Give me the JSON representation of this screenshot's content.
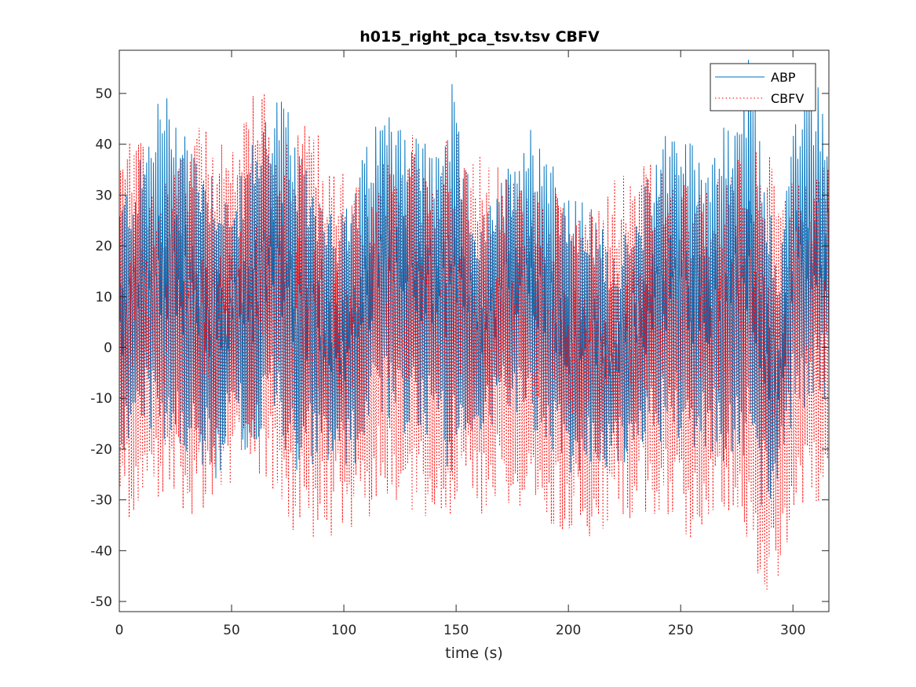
{
  "chart_data": {
    "type": "line",
    "title": "h015_right_pca_tsv.tsv CBFV",
    "xlabel": "time (s)",
    "ylabel": "",
    "xlim": [
      0,
      316
    ],
    "ylim": [
      -52,
      58.5
    ],
    "xticks": [
      "0",
      "50",
      "100",
      "150",
      "200",
      "250",
      "300"
    ],
    "xtick_values": [
      0,
      50,
      100,
      150,
      200,
      250,
      300
    ],
    "yticks": [
      "-50",
      "-40",
      "-30",
      "-20",
      "-10",
      "0",
      "10",
      "20",
      "30",
      "40",
      "50"
    ],
    "ytick_values": [
      -50,
      -40,
      -30,
      -20,
      -10,
      0,
      10,
      20,
      30,
      40,
      50
    ],
    "grid": false,
    "legend_position": "top-right",
    "series": [
      {
        "name": "ABP",
        "color": "#0072BD",
        "style": "solid",
        "beat_period_s": 1.0,
        "envelope": {
          "t": [
            0,
            10,
            17,
            25,
            35,
            45,
            50,
            58,
            67,
            72,
            80,
            90,
            100,
            110,
            115,
            124,
            130,
            140,
            148,
            152,
            160,
            170,
            180,
            190,
            200,
            210,
            220,
            230,
            240,
            248,
            256,
            265,
            272,
            280,
            288,
            293,
            300,
            310,
            316
          ],
          "max": [
            30,
            38,
            51,
            50,
            40,
            35,
            28,
            40,
            50,
            52,
            38,
            32,
            27,
            40,
            46,
            50,
            44,
            40,
            52,
            40,
            25,
            33,
            45,
            43,
            30,
            28,
            20,
            25,
            43,
            46,
            40,
            42,
            45,
            58,
            35,
            15,
            47,
            55,
            47
          ],
          "min": [
            -24,
            -15,
            -18,
            -20,
            -25,
            -28,
            -15,
            -22,
            -15,
            -20,
            -25,
            -22,
            -26,
            -23,
            -12,
            -20,
            -17,
            -19,
            -25,
            -20,
            -18,
            -14,
            -15,
            -20,
            -26,
            -25,
            -24,
            -22,
            -20,
            -18,
            -22,
            -21,
            -25,
            -25,
            -34,
            -30,
            -14,
            -12,
            -10
          ]
        }
      },
      {
        "name": "CBFV",
        "color": "#FF0000",
        "style": "dotted",
        "beat_period_s": 1.0,
        "envelope": {
          "t": [
            0,
            10,
            17,
            25,
            35,
            45,
            50,
            58,
            67,
            72,
            80,
            90,
            100,
            110,
            115,
            124,
            130,
            140,
            148,
            152,
            160,
            170,
            180,
            190,
            200,
            210,
            220,
            230,
            240,
            248,
            256,
            265,
            272,
            280,
            288,
            293,
            300,
            310,
            316
          ],
          "max": [
            45,
            40,
            30,
            38,
            45,
            40,
            43,
            50,
            52,
            40,
            47,
            42,
            35,
            30,
            36,
            40,
            43,
            38,
            45,
            40,
            38,
            35,
            33,
            30,
            32,
            30,
            35,
            38,
            36,
            34,
            30,
            33,
            38,
            43,
            40,
            30,
            33,
            35,
            38
          ],
          "min": [
            -35,
            -32,
            -30,
            -33,
            -35,
            -30,
            -28,
            -25,
            -30,
            -34,
            -38,
            -38,
            -37,
            -35,
            -30,
            -32,
            -33,
            -35,
            -35,
            -30,
            -33,
            -30,
            -34,
            -36,
            -39,
            -37,
            -35,
            -33,
            -34,
            -37,
            -38,
            -35,
            -34,
            -38,
            -52,
            -48,
            -35,
            -32,
            -30
          ]
        }
      }
    ]
  }
}
